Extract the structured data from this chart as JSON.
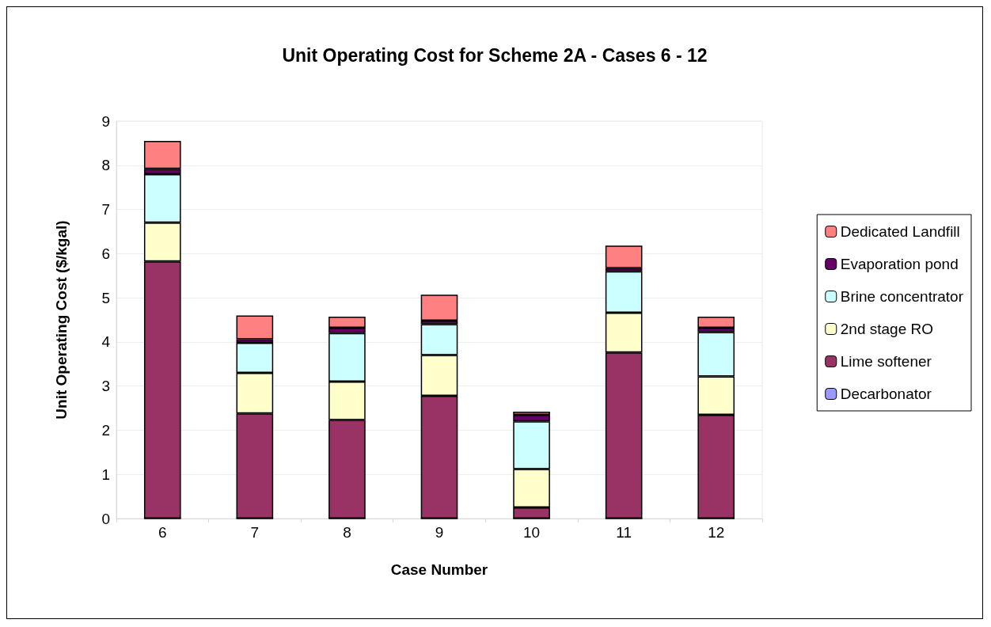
{
  "chart_data": {
    "type": "bar",
    "title": "Unit Operating Cost for Scheme 2A - Cases 6 - 12",
    "xlabel": "Case Number",
    "ylabel": "Unit Operating Cost ($/kgal)",
    "categories": [
      "6",
      "7",
      "8",
      "9",
      "10",
      "11",
      "12"
    ],
    "stacked": true,
    "ylim": [
      0,
      9
    ],
    "yticks": [
      0,
      1,
      2,
      3,
      4,
      5,
      6,
      7,
      8,
      9
    ],
    "grid": "y",
    "legend": "right",
    "series": [
      {
        "name": "Decarbonator",
        "color": "#9999ff",
        "values": [
          0,
          0,
          0,
          0,
          0,
          0,
          0
        ]
      },
      {
        "name": "Lime softener",
        "color": "#993366",
        "values": [
          5.82,
          2.38,
          2.23,
          2.78,
          0.25,
          3.76,
          2.35
        ]
      },
      {
        "name": "2nd stage RO",
        "color": "#ffffcc",
        "values": [
          0.88,
          0.92,
          0.87,
          0.92,
          0.87,
          0.9,
          0.87
        ]
      },
      {
        "name": "Brine concentrator",
        "color": "#ccffff",
        "values": [
          1.1,
          0.68,
          1.1,
          0.7,
          1.08,
          0.94,
          1.0
        ]
      },
      {
        "name": "Evaporation pond",
        "color": "#660066",
        "values": [
          0.12,
          0.08,
          0.12,
          0.08,
          0.15,
          0.07,
          0.1
        ]
      },
      {
        "name": "Dedicated Landfill",
        "color": "#ff8080",
        "values": [
          0.63,
          0.54,
          0.25,
          0.59,
          0.07,
          0.51,
          0.25
        ]
      }
    ]
  }
}
